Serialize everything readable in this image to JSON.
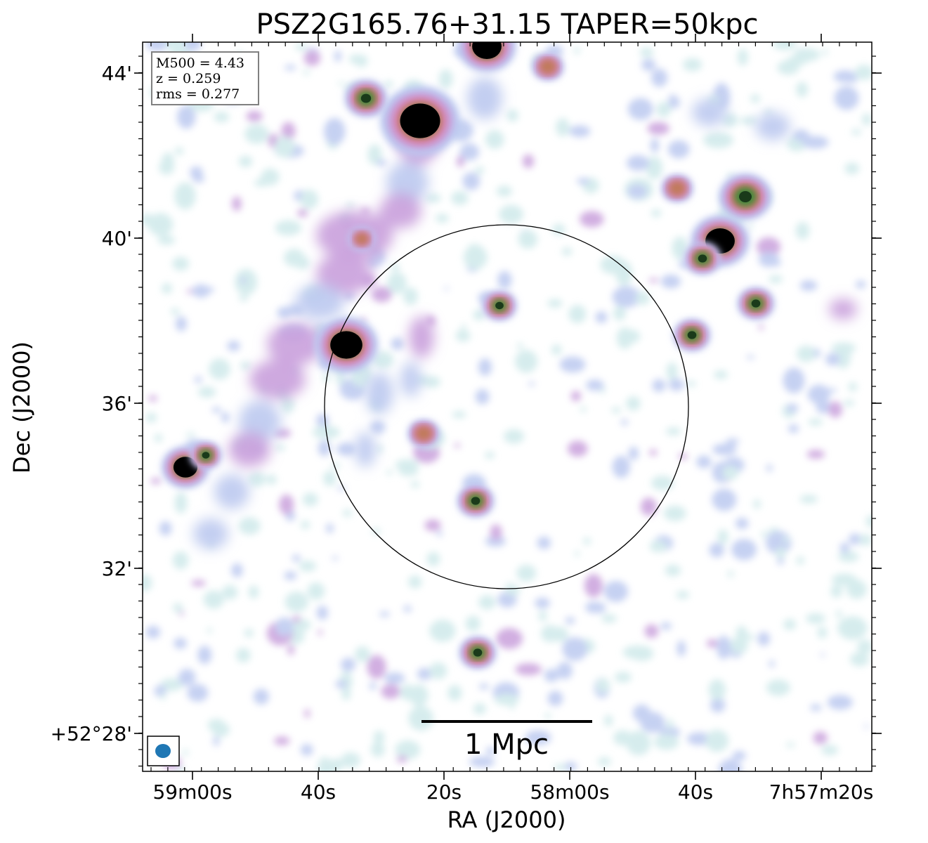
{
  "title": "PSZ2G165.76+31.15 TAPER=50kpc",
  "xlabel": "RA (J2000)",
  "ylabel": "Dec (J2000)",
  "x_ticks": [
    "59m00s",
    "40s",
    "20s",
    "58m00s",
    "40s",
    "7h57m20s"
  ],
  "y_ticks": [
    "44'",
    "40'",
    "36'",
    "32'",
    "+52°28'"
  ],
  "info_box": [
    "M500 = 4.43",
    "z = 0.259",
    "rms = 0.277"
  ],
  "scale_bar_label": "1 Mpc",
  "colormap": [
    "#ffffff",
    "#cfe9ea",
    "#bcc9f0",
    "#c9a0dc",
    "#d77fa8",
    "#c07a5a",
    "#3a8a3a",
    "#000000"
  ],
  "circle_color": "#000000",
  "beam_color": "#1f77b4"
}
